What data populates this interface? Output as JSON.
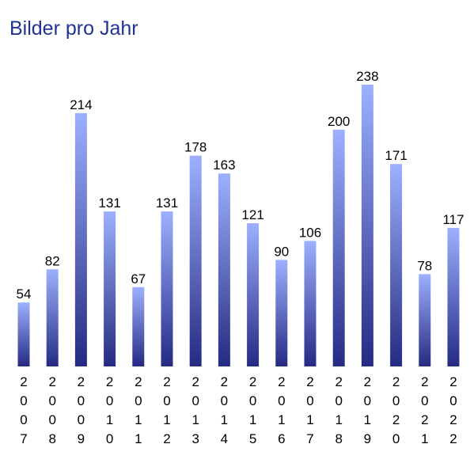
{
  "chart_data": {
    "type": "bar",
    "title": "Bilder pro Jahr",
    "xlabel": "",
    "ylabel": "",
    "categories": [
      "2007",
      "2008",
      "2009",
      "2010",
      "2011",
      "2012",
      "2013",
      "2014",
      "2015",
      "2016",
      "2017",
      "2018",
      "2019",
      "2020",
      "2021",
      "2022"
    ],
    "values": [
      54,
      82,
      214,
      131,
      67,
      131,
      178,
      163,
      121,
      90,
      106,
      200,
      238,
      171,
      78,
      117
    ],
    "ylim": [
      0,
      238
    ],
    "grid": false,
    "legend": "none",
    "colors": {
      "title": "#1f3494",
      "bar_top": "#9db0ff",
      "bar_bottom": "#252a82"
    }
  }
}
